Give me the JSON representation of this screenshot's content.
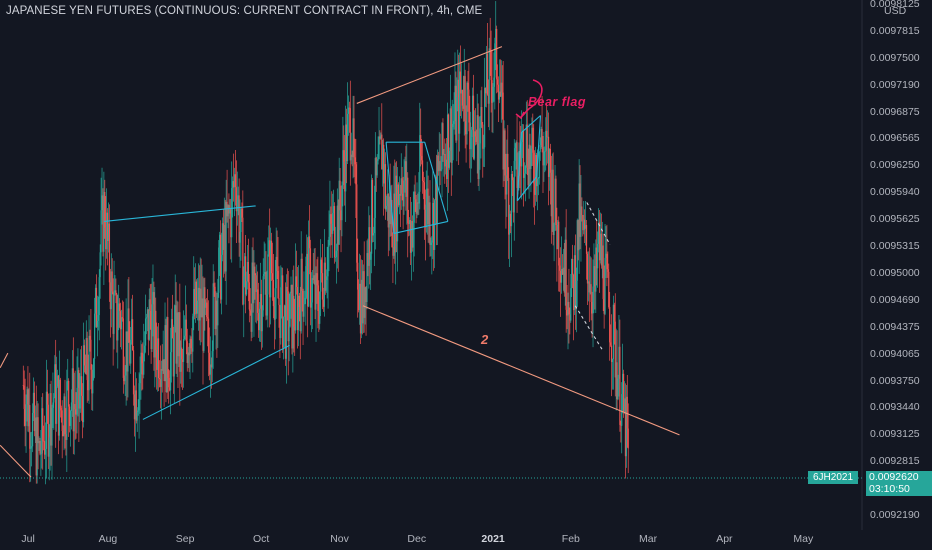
{
  "header": {
    "title": "JAPANESE YEN FUTURES (CONTINUOUS: CURRENT CONTRACT IN FRONT), 4h, CME",
    "currency": "USD"
  },
  "price_tag": {
    "symbol": "6JH2021",
    "price": "0.0092620",
    "countdown": "03:10:50"
  },
  "annotations": {
    "bear_flag": "Bear flag",
    "wave_number": "2"
  },
  "chart_data": {
    "type": "candlestick",
    "title": "JAPANESE YEN FUTURES (CONTINUOUS: CURRENT CONTRACT IN FRONT), 4h, CME",
    "interval": "4h",
    "currency": "USD",
    "y_ticks": [
      "0.0098125",
      "0.0097815",
      "0.0097500",
      "0.0097190",
      "0.0096875",
      "0.0096565",
      "0.0096250",
      "0.0095940",
      "0.0095625",
      "0.0095315",
      "0.0095000",
      "0.0094690",
      "0.0094375",
      "0.0094065",
      "0.0093750",
      "0.0093440",
      "0.0093125",
      "0.0092815",
      "0.0092190"
    ],
    "ylim": [
      0.00919,
      0.00983
    ],
    "x_ticks": [
      "Jul",
      "Aug",
      "Sep",
      "Oct",
      "Nov",
      "Dec",
      "2021",
      "Feb",
      "Mar",
      "Apr",
      "May"
    ],
    "x_tick_months": [
      0,
      1,
      2,
      3,
      4,
      5,
      6,
      7,
      8,
      9,
      10
    ],
    "last_price": 0.009262,
    "colors": {
      "up": "#26a69a",
      "down": "#ef5350",
      "background": "#131722",
      "trendline_blue": "#29b6d8",
      "trendline_orange": "#f29a80",
      "flag": "#e91e63"
    },
    "series": [
      {
        "name": "close",
        "points": [
          [
            -0.1,
            0.00937
          ],
          [
            0.0,
            0.00933
          ],
          [
            0.1,
            0.00929
          ],
          [
            0.2,
            0.00932
          ],
          [
            0.3,
            0.00936
          ],
          [
            0.4,
            0.00934
          ],
          [
            0.5,
            0.00936
          ],
          [
            0.6,
            0.00934
          ],
          [
            0.7,
            0.00938
          ],
          [
            0.8,
            0.0094
          ],
          [
            0.9,
            0.00953
          ],
          [
            0.95,
            0.00958
          ],
          [
            1.0,
            0.00952
          ],
          [
            1.05,
            0.00947
          ],
          [
            1.1,
            0.00944
          ],
          [
            1.15,
            0.00946
          ],
          [
            1.2,
            0.00942
          ],
          [
            1.3,
            0.00941
          ],
          [
            1.35,
            0.00936
          ],
          [
            1.4,
            0.00938
          ],
          [
            1.5,
            0.00943
          ],
          [
            1.55,
            0.00946
          ],
          [
            1.6,
            0.00942
          ],
          [
            1.7,
            0.00941
          ],
          [
            1.8,
            0.0094
          ],
          [
            1.9,
            0.00943
          ],
          [
            1.95,
            0.00938
          ],
          [
            2.0,
            0.00942
          ],
          [
            2.1,
            0.00945
          ],
          [
            2.2,
            0.00946
          ],
          [
            2.3,
            0.00941
          ],
          [
            2.4,
            0.00948
          ],
          [
            2.5,
            0.00953
          ],
          [
            2.6,
            0.00958
          ],
          [
            2.65,
            0.00962
          ],
          [
            2.7,
            0.00956
          ],
          [
            2.75,
            0.0095
          ],
          [
            2.8,
            0.00949
          ],
          [
            2.9,
            0.00946
          ],
          [
            3.0,
            0.00948
          ],
          [
            3.1,
            0.00951
          ],
          [
            3.2,
            0.00947
          ],
          [
            3.3,
            0.00944
          ],
          [
            3.4,
            0.00945
          ],
          [
            3.5,
            0.00948
          ],
          [
            3.6,
            0.0095
          ],
          [
            3.7,
            0.00946
          ],
          [
            3.8,
            0.00951
          ],
          [
            3.9,
            0.00955
          ],
          [
            4.0,
            0.00957
          ],
          [
            4.05,
            0.00963
          ],
          [
            4.1,
            0.00966
          ],
          [
            4.15,
            0.00968
          ],
          [
            4.2,
            0.00958
          ],
          [
            4.25,
            0.00948
          ],
          [
            4.3,
            0.00946
          ],
          [
            4.35,
            0.00952
          ],
          [
            4.4,
            0.00956
          ],
          [
            4.5,
            0.00961
          ],
          [
            4.55,
            0.00965
          ],
          [
            4.6,
            0.00958
          ],
          [
            4.7,
            0.00956
          ],
          [
            4.8,
            0.00962
          ],
          [
            4.85,
            0.0096
          ],
          [
            4.9,
            0.00955
          ],
          [
            5.0,
            0.00958
          ],
          [
            5.05,
            0.00963
          ],
          [
            5.1,
            0.00959
          ],
          [
            5.2,
            0.00956
          ],
          [
            5.3,
            0.00962
          ],
          [
            5.4,
            0.00966
          ],
          [
            5.5,
            0.00968
          ],
          [
            5.6,
            0.00972
          ],
          [
            5.7,
            0.00967
          ],
          [
            5.8,
            0.00965
          ],
          [
            5.9,
            0.00971
          ],
          [
            6.0,
            0.00974
          ],
          [
            6.05,
            0.00975
          ],
          [
            6.1,
            0.00967
          ],
          [
            6.15,
            0.00962
          ],
          [
            6.2,
            0.00958
          ],
          [
            6.3,
            0.00962
          ],
          [
            6.4,
            0.00966
          ],
          [
            6.5,
            0.00962
          ],
          [
            6.6,
            0.00965
          ],
          [
            6.7,
            0.00963
          ],
          [
            6.75,
            0.0096
          ],
          [
            6.8,
            0.00956
          ],
          [
            6.9,
            0.00951
          ],
          [
            7.0,
            0.00947
          ],
          [
            7.05,
            0.0095
          ],
          [
            7.1,
            0.00956
          ],
          [
            7.2,
            0.00952
          ],
          [
            7.3,
            0.00947
          ],
          [
            7.35,
            0.00953
          ],
          [
            7.4,
            0.00951
          ],
          [
            7.5,
            0.00945
          ],
          [
            7.55,
            0.00942
          ],
          [
            7.6,
            0.00939
          ],
          [
            7.65,
            0.00935
          ],
          [
            7.7,
            0.00932
          ],
          [
            7.72,
            0.00931
          ],
          [
            7.74,
            0.00926
          ]
        ]
      }
    ]
  }
}
